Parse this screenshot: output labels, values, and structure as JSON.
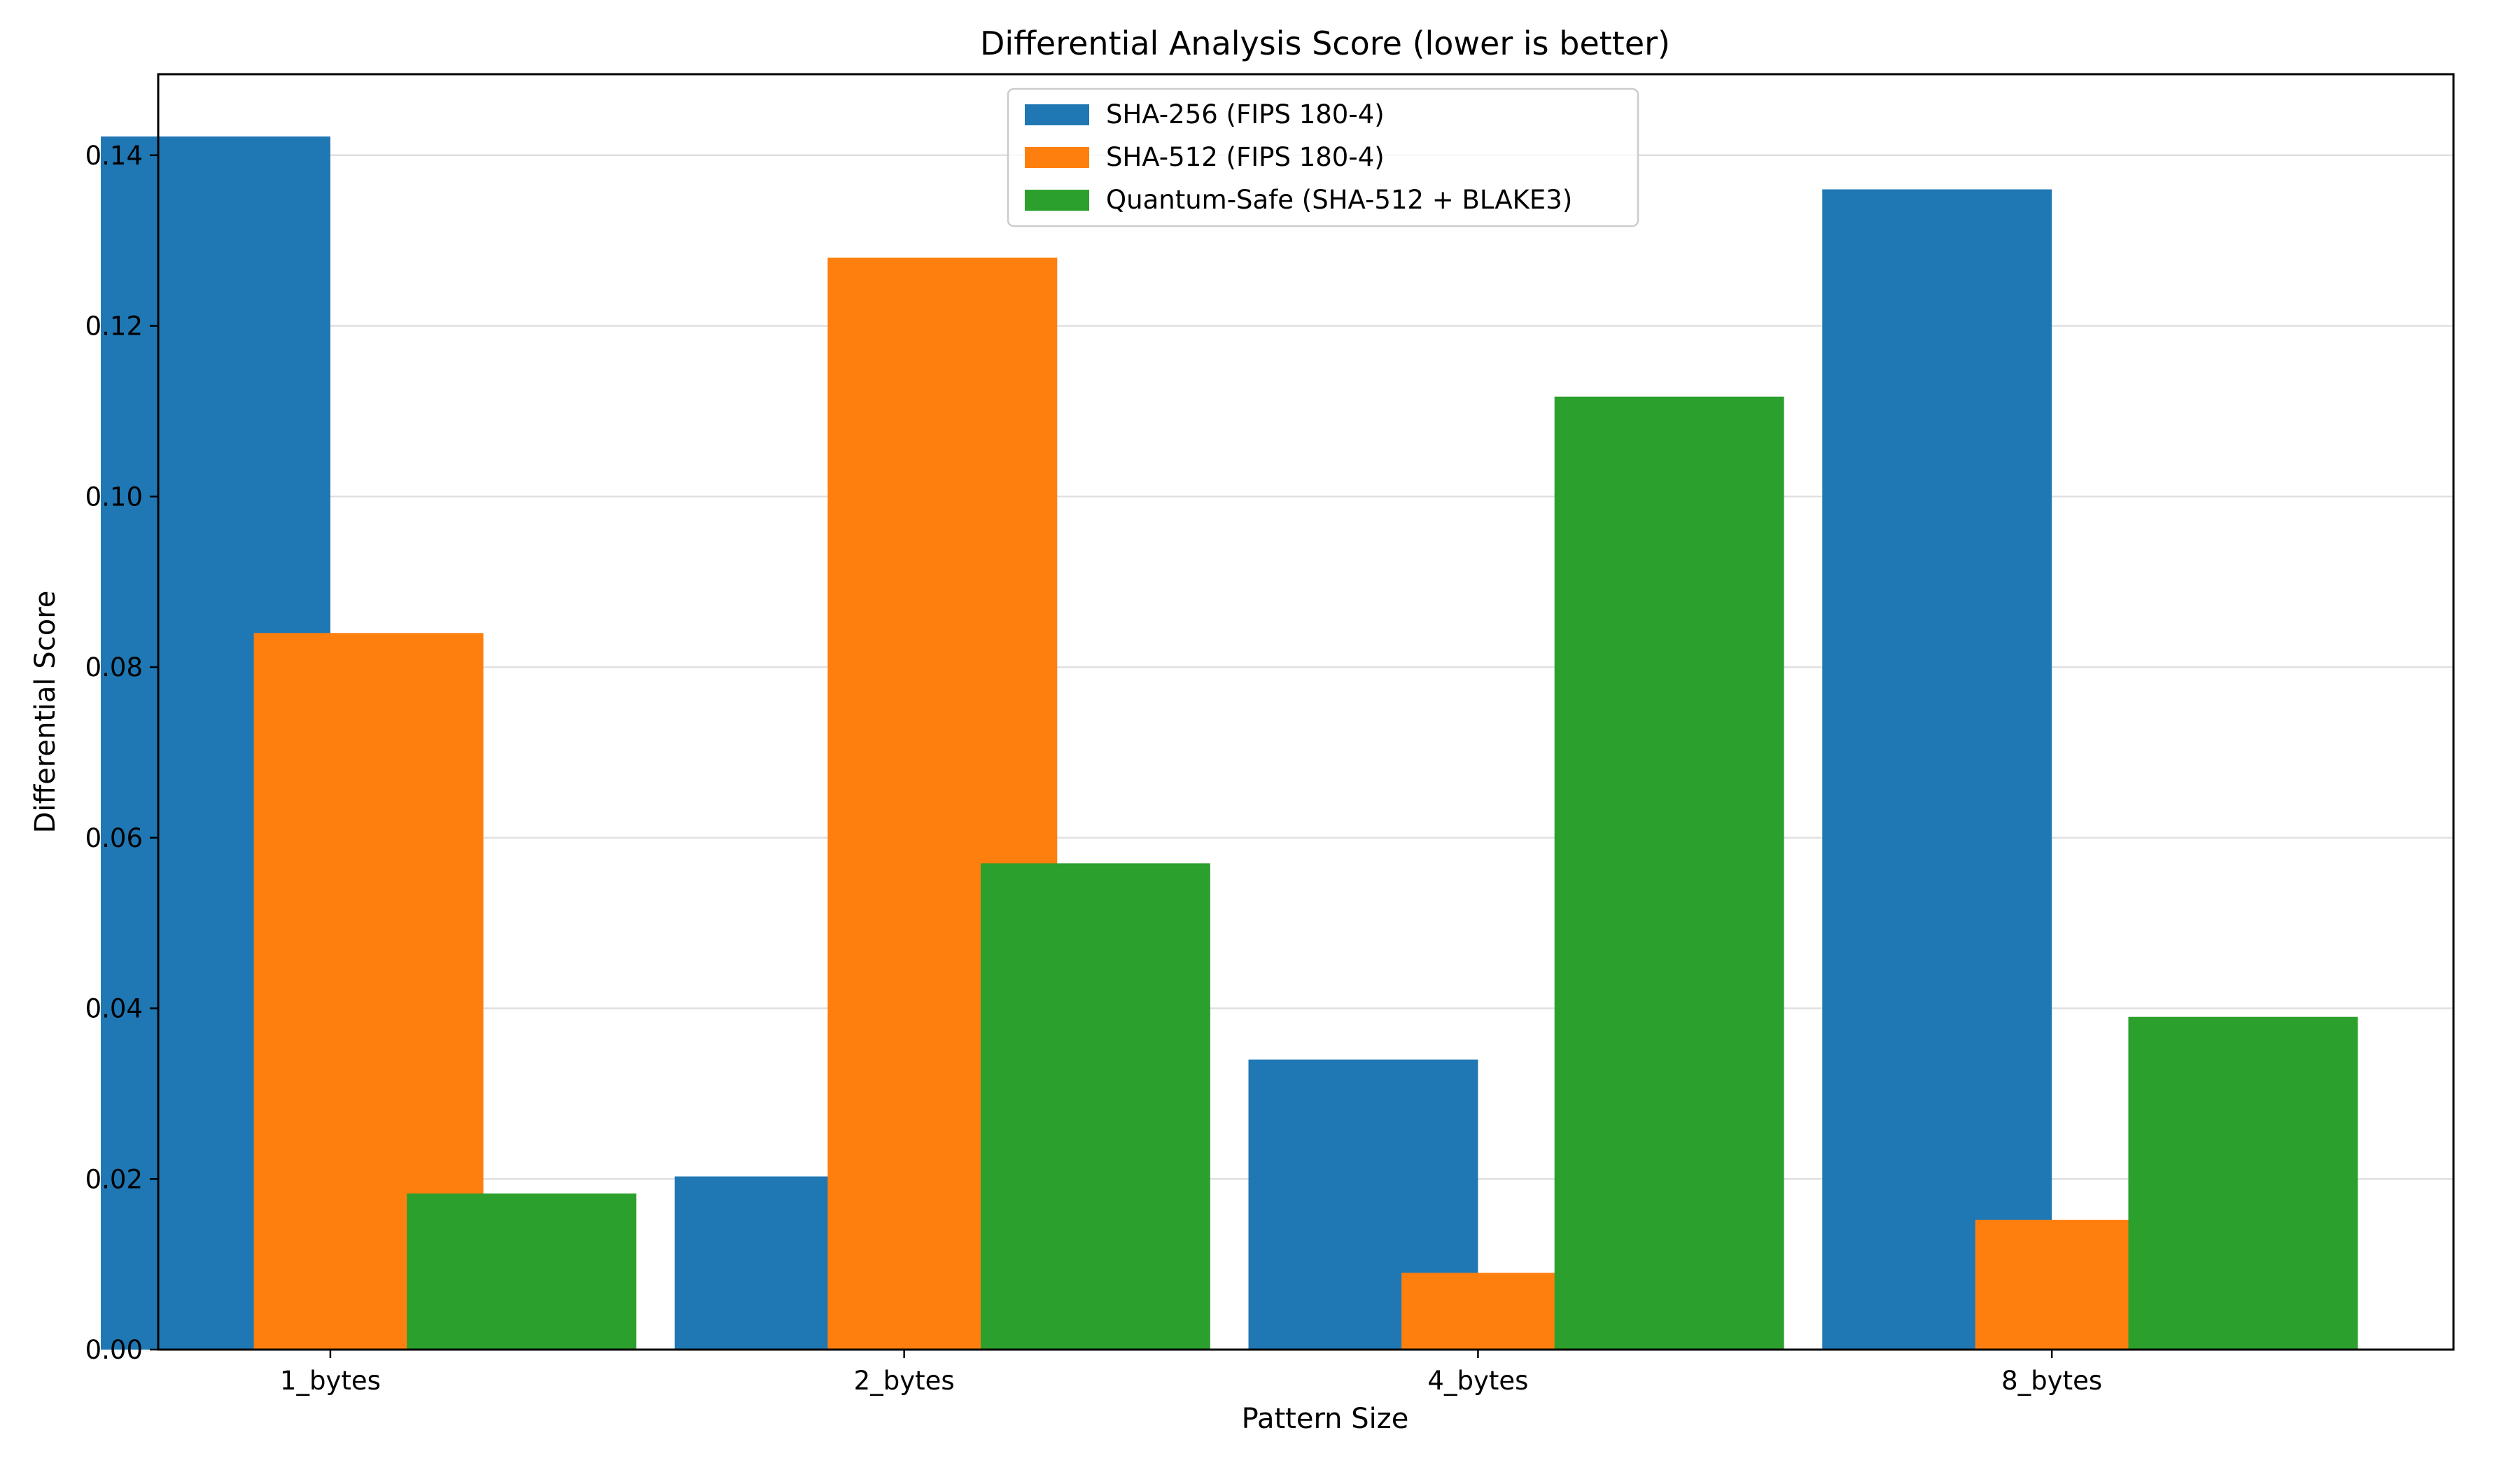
{
  "chart_data": {
    "type": "bar",
    "title": "Differential Analysis Score (lower is better)",
    "xlabel": "Pattern Size",
    "ylabel": "Differential Score",
    "categories": [
      "1_bytes",
      "2_bytes",
      "4_bytes",
      "8_bytes"
    ],
    "series": [
      {
        "name": "SHA-256 (FIPS 180-4)",
        "color": "#1f77b4",
        "values": [
          0.1422,
          0.0203,
          0.034,
          0.136
        ]
      },
      {
        "name": "SHA-512 (FIPS 180-4)",
        "color": "#ff7f0e",
        "values": [
          0.084,
          0.128,
          0.009,
          0.0152
        ]
      },
      {
        "name": "Quantum-Safe (SHA-512 + BLAKE3)",
        "color": "#2ca02c",
        "values": [
          0.0183,
          0.057,
          0.1117,
          0.039
        ]
      }
    ],
    "ylim": [
      0,
      0.1495
    ],
    "yticks": [
      0.0,
      0.02,
      0.04,
      0.06,
      0.08,
      0.1,
      0.12,
      0.14
    ],
    "ytick_labels": [
      "0.00",
      "0.02",
      "0.04",
      "0.06",
      "0.08",
      "0.10",
      "0.12",
      "0.14"
    ],
    "grid": "y",
    "legend_position": "top-center"
  }
}
